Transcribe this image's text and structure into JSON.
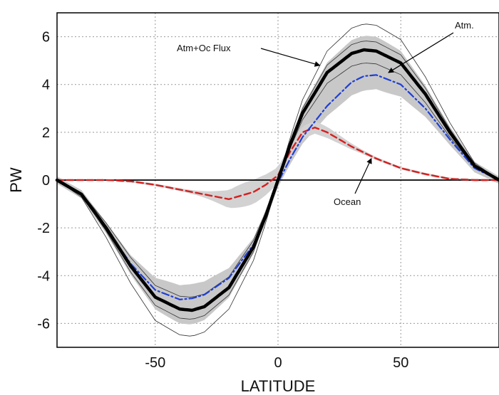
{
  "chart_data": {
    "type": "line",
    "xlabel": "LATITUDE",
    "ylabel": "PW",
    "xlim": [
      -90,
      90
    ],
    "ylim": [
      -7,
      7
    ],
    "xticks": [
      -50,
      0,
      50
    ],
    "yticks": [
      -6,
      -4,
      -2,
      0,
      2,
      4,
      6
    ],
    "grid": true,
    "zero_line": true,
    "series": [
      {
        "name": "Atm+Oc Flux",
        "color": "#000000",
        "style": "solid-thick",
        "x": [
          -90,
          -80,
          -70,
          -60,
          -50,
          -40,
          -35,
          -30,
          -20,
          -10,
          -5,
          0,
          5,
          10,
          20,
          30,
          35,
          40,
          50,
          60,
          70,
          80,
          90
        ],
        "y": [
          0,
          -0.6,
          -2.0,
          -3.6,
          -4.9,
          -5.4,
          -5.45,
          -5.3,
          -4.5,
          -2.8,
          -1.5,
          0,
          1.5,
          2.8,
          4.5,
          5.3,
          5.45,
          5.4,
          4.9,
          3.6,
          2.0,
          0.6,
          0
        ]
      },
      {
        "name": "Atm.",
        "color": "#1f3fd6",
        "style": "dash-dot",
        "x": [
          -90,
          -80,
          -70,
          -60,
          -50,
          -40,
          -35,
          -30,
          -20,
          -10,
          -5,
          0,
          5,
          10,
          20,
          30,
          35,
          40,
          50,
          60,
          70,
          80,
          90
        ],
        "y": [
          0,
          -0.6,
          -2.0,
          -3.5,
          -4.6,
          -5.0,
          -4.95,
          -4.8,
          -4.1,
          -2.7,
          -1.5,
          -0.1,
          0.9,
          1.8,
          3.1,
          4.1,
          4.35,
          4.4,
          4.0,
          3.0,
          1.7,
          0.5,
          0
        ]
      },
      {
        "name": "Ocean",
        "color": "#d62020",
        "style": "dashed",
        "x": [
          -90,
          -80,
          -70,
          -60,
          -50,
          -40,
          -30,
          -20,
          -10,
          -5,
          0,
          5,
          10,
          15,
          20,
          30,
          40,
          50,
          60,
          70,
          80,
          90
        ],
        "y": [
          0,
          0,
          0,
          -0.05,
          -0.2,
          -0.4,
          -0.6,
          -0.8,
          -0.5,
          -0.2,
          0.2,
          1.2,
          2.0,
          2.2,
          2.0,
          1.4,
          0.9,
          0.5,
          0.25,
          0.05,
          0,
          0
        ]
      }
    ],
    "annotations": [
      {
        "text": "Atm+Oc Flux",
        "points_to": {
          "x": 17,
          "y": 4.8
        }
      },
      {
        "text": "Atm.",
        "points_to": {
          "x": 45,
          "y": 4.5
        }
      },
      {
        "text": "Ocean",
        "points_to": {
          "x": 38,
          "y": 0.9
        }
      }
    ]
  }
}
